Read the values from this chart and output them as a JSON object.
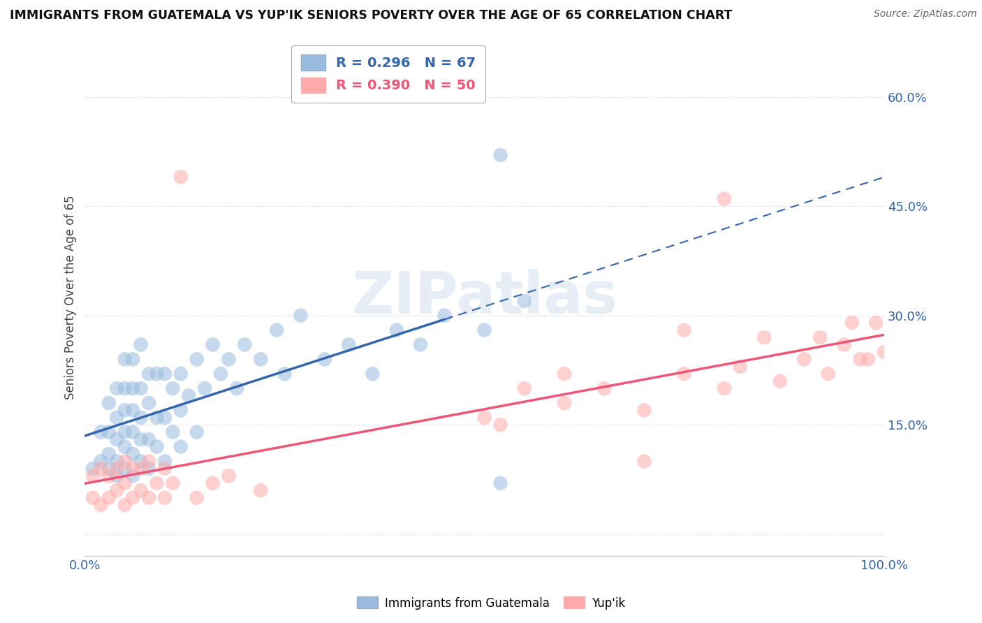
{
  "title": "IMMIGRANTS FROM GUATEMALA VS YUP'IK SENIORS POVERTY OVER THE AGE OF 65 CORRELATION CHART",
  "source": "Source: ZipAtlas.com",
  "ylabel": "Seniors Poverty Over the Age of 65",
  "xlim": [
    0,
    1.0
  ],
  "ylim": [
    -0.03,
    0.68
  ],
  "yticks": [
    0.0,
    0.15,
    0.3,
    0.45,
    0.6
  ],
  "ytick_labels": [
    "",
    "15.0%",
    "30.0%",
    "45.0%",
    "60.0%"
  ],
  "xticks": [
    0.0,
    1.0
  ],
  "xtick_labels": [
    "0.0%",
    "100.0%"
  ],
  "blue_color": "#99BBDD",
  "pink_color": "#FFAAAA",
  "blue_line_color": "#3366AA",
  "pink_line_color": "#EE5577",
  "watermark": "ZIPatlas",
  "blue_x": [
    0.01,
    0.02,
    0.02,
    0.03,
    0.03,
    0.03,
    0.03,
    0.04,
    0.04,
    0.04,
    0.04,
    0.04,
    0.05,
    0.05,
    0.05,
    0.05,
    0.05,
    0.05,
    0.06,
    0.06,
    0.06,
    0.06,
    0.06,
    0.06,
    0.07,
    0.07,
    0.07,
    0.07,
    0.07,
    0.08,
    0.08,
    0.08,
    0.08,
    0.09,
    0.09,
    0.09,
    0.1,
    0.1,
    0.1,
    0.11,
    0.11,
    0.12,
    0.12,
    0.12,
    0.13,
    0.14,
    0.14,
    0.15,
    0.16,
    0.17,
    0.18,
    0.19,
    0.2,
    0.22,
    0.24,
    0.25,
    0.27,
    0.3,
    0.33,
    0.36,
    0.39,
    0.42,
    0.45,
    0.5,
    0.52,
    0.55,
    0.52
  ],
  "blue_y": [
    0.09,
    0.1,
    0.14,
    0.09,
    0.11,
    0.14,
    0.18,
    0.08,
    0.1,
    0.13,
    0.16,
    0.2,
    0.09,
    0.12,
    0.14,
    0.17,
    0.2,
    0.24,
    0.08,
    0.11,
    0.14,
    0.17,
    0.2,
    0.24,
    0.1,
    0.13,
    0.16,
    0.2,
    0.26,
    0.09,
    0.13,
    0.18,
    0.22,
    0.12,
    0.16,
    0.22,
    0.1,
    0.16,
    0.22,
    0.14,
    0.2,
    0.12,
    0.17,
    0.22,
    0.19,
    0.14,
    0.24,
    0.2,
    0.26,
    0.22,
    0.24,
    0.2,
    0.26,
    0.24,
    0.28,
    0.22,
    0.3,
    0.24,
    0.26,
    0.22,
    0.28,
    0.26,
    0.3,
    0.28,
    0.52,
    0.32,
    0.07
  ],
  "pink_x": [
    0.01,
    0.01,
    0.02,
    0.02,
    0.03,
    0.03,
    0.04,
    0.04,
    0.05,
    0.05,
    0.05,
    0.06,
    0.06,
    0.07,
    0.07,
    0.08,
    0.08,
    0.09,
    0.1,
    0.1,
    0.11,
    0.12,
    0.14,
    0.16,
    0.18,
    0.22,
    0.5,
    0.52,
    0.55,
    0.6,
    0.6,
    0.65,
    0.7,
    0.75,
    0.75,
    0.8,
    0.82,
    0.85,
    0.87,
    0.9,
    0.92,
    0.93,
    0.95,
    0.96,
    0.97,
    0.98,
    0.99,
    1.0,
    0.7,
    0.8
  ],
  "pink_y": [
    0.05,
    0.08,
    0.04,
    0.09,
    0.05,
    0.08,
    0.06,
    0.09,
    0.04,
    0.07,
    0.1,
    0.05,
    0.09,
    0.06,
    0.09,
    0.05,
    0.1,
    0.07,
    0.05,
    0.09,
    0.07,
    0.49,
    0.05,
    0.07,
    0.08,
    0.06,
    0.16,
    0.15,
    0.2,
    0.18,
    0.22,
    0.2,
    0.17,
    0.22,
    0.28,
    0.2,
    0.23,
    0.27,
    0.21,
    0.24,
    0.27,
    0.22,
    0.26,
    0.29,
    0.24,
    0.24,
    0.29,
    0.25,
    0.1,
    0.46
  ],
  "background_color": "#FFFFFF",
  "grid_color": "#DDDDEE"
}
